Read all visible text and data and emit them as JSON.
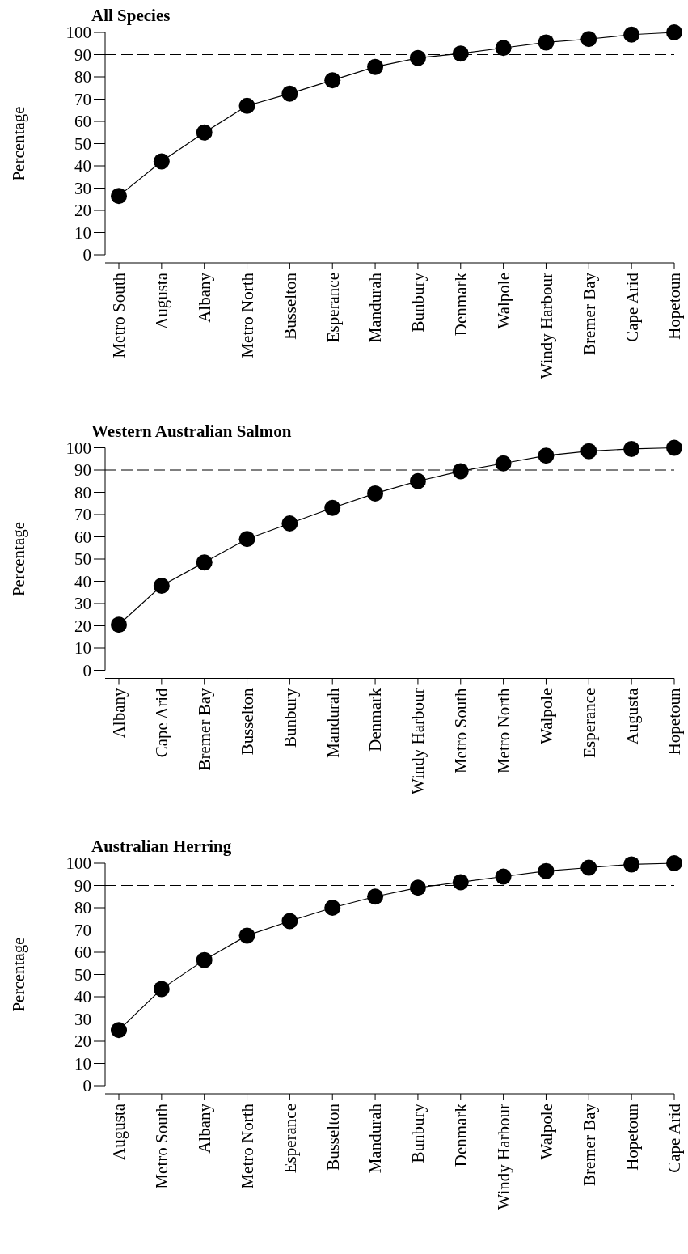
{
  "chart_data": [
    {
      "type": "line",
      "title": "All Species",
      "ylabel": "Percentage",
      "categories": [
        "Metro South",
        "Augusta",
        "Albany",
        "Metro North",
        "Busselton",
        "Esperance",
        "Mandurah",
        "Bunbury",
        "Denmark",
        "Walpole",
        "Windy Harbour",
        "Bremer Bay",
        "Cape Arid",
        "Hopetoun"
      ],
      "series": [
        {
          "color": "#000000",
          "values": [
            26.5,
            42,
            55,
            67,
            72.5,
            78.5,
            84.5,
            88.5,
            90.5,
            93,
            95.5,
            97,
            99,
            100
          ]
        }
      ],
      "ylim": [
        0,
        100
      ],
      "yticks": [
        0,
        10,
        20,
        30,
        40,
        50,
        60,
        70,
        80,
        90,
        100
      ],
      "grid": false,
      "marker": "circle",
      "line_style": "solid",
      "ref_lines": [
        {
          "axis": "y",
          "value": 90,
          "line_style": "dashed",
          "color": "#000000"
        }
      ]
    },
    {
      "type": "line",
      "title": "Western Australian Salmon",
      "ylabel": "Percentage",
      "categories": [
        "Albany",
        "Cape Arid",
        "Bremer Bay",
        "Busselton",
        "Bunbury",
        "Mandurah",
        "Denmark",
        "Windy Harbour",
        "Metro South",
        "Metro North",
        "Walpole",
        "Esperance",
        "Augusta",
        "Hopetoun"
      ],
      "series": [
        {
          "color": "#000000",
          "values": [
            20.5,
            38,
            48.5,
            59,
            66,
            73,
            79.5,
            85,
            89.5,
            93,
            96.5,
            98.5,
            99.5,
            100
          ]
        }
      ],
      "ylim": [
        0,
        100
      ],
      "yticks": [
        0,
        10,
        20,
        30,
        40,
        50,
        60,
        70,
        80,
        90,
        100
      ],
      "grid": false,
      "marker": "circle",
      "line_style": "solid",
      "ref_lines": [
        {
          "axis": "y",
          "value": 90,
          "line_style": "dashed",
          "color": "#000000"
        }
      ]
    },
    {
      "type": "line",
      "title": "Australian Herring",
      "ylabel": "Percentage",
      "categories": [
        "Augusta",
        "Metro South",
        "Albany",
        "Metro North",
        "Esperance",
        "Busselton",
        "Mandurah",
        "Bunbury",
        "Denmark",
        "Windy Harbour",
        "Walpole",
        "Bremer Bay",
        "Hopetoun",
        "Cape Arid"
      ],
      "series": [
        {
          "color": "#000000",
          "values": [
            25,
            43.5,
            56.5,
            67.5,
            74,
            80,
            85,
            89,
            91.5,
            94,
            96.5,
            98,
            99.5,
            100
          ]
        }
      ],
      "ylim": [
        0,
        100
      ],
      "yticks": [
        0,
        10,
        20,
        30,
        40,
        50,
        60,
        70,
        80,
        90,
        100
      ],
      "grid": false,
      "marker": "circle",
      "line_style": "solid",
      "ref_lines": [
        {
          "axis": "y",
          "value": 90,
          "line_style": "dashed",
          "color": "#000000"
        }
      ]
    }
  ]
}
